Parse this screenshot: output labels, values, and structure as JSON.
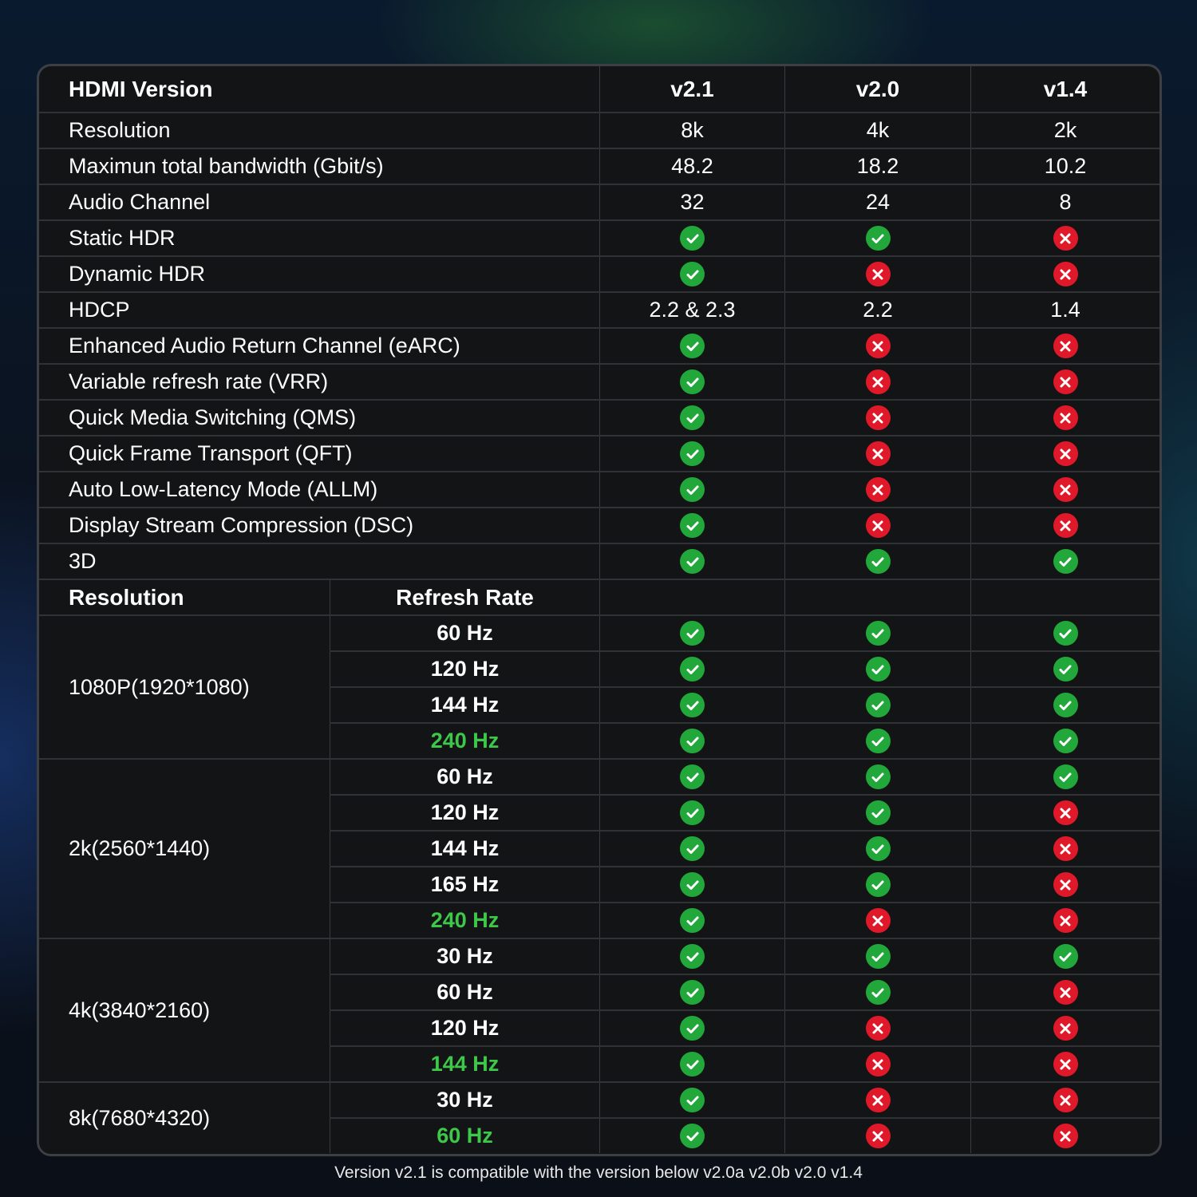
{
  "colors": {
    "check": "#22a83a",
    "cross": "#e0192a",
    "highlight": "#3ec84a",
    "background": "#131416"
  },
  "header": {
    "label": "HDMI Version",
    "versions": [
      "v2.1",
      "v2.0",
      "v1.4"
    ]
  },
  "features": [
    {
      "label": "Resolution",
      "values": [
        "8k",
        "4k",
        "2k"
      ]
    },
    {
      "label": "Maximun total bandwidth (Gbit/s)",
      "values": [
        "48.2",
        "18.2",
        "10.2"
      ]
    },
    {
      "label": "Audio Channel",
      "values": [
        "32",
        "24",
        "8"
      ]
    },
    {
      "label": "Static HDR",
      "values": [
        "check",
        "check",
        "cross"
      ]
    },
    {
      "label": "Dynamic HDR",
      "values": [
        "check",
        "cross",
        "cross"
      ]
    },
    {
      "label": "HDCP",
      "values": [
        "2.2 & 2.3",
        "2.2",
        "1.4"
      ]
    },
    {
      "label": "Enhanced Audio Return Channel (eARC)",
      "values": [
        "check",
        "cross",
        "cross"
      ]
    },
    {
      "label": "Variable refresh rate (VRR)",
      "values": [
        "check",
        "cross",
        "cross"
      ]
    },
    {
      "label": "Quick Media Switching (QMS)",
      "values": [
        "check",
        "cross",
        "cross"
      ]
    },
    {
      "label": "Quick Frame Transport (QFT)",
      "values": [
        "check",
        "cross",
        "cross"
      ]
    },
    {
      "label": "Auto Low-Latency Mode (ALLM)",
      "values": [
        "check",
        "cross",
        "cross"
      ]
    },
    {
      "label": "Display Stream Compression (DSC)",
      "values": [
        "check",
        "cross",
        "cross"
      ]
    },
    {
      "label": "3D",
      "values": [
        "check",
        "check",
        "check"
      ]
    }
  ],
  "refresh_header": {
    "resolution": "Resolution",
    "refresh_rate": "Refresh Rate"
  },
  "refresh_groups": [
    {
      "resolution": "1080P(1920*1080)",
      "rates": [
        {
          "rate": "60 Hz",
          "highlight": false,
          "values": [
            "check",
            "check",
            "check"
          ]
        },
        {
          "rate": "120 Hz",
          "highlight": false,
          "values": [
            "check",
            "check",
            "check"
          ]
        },
        {
          "rate": "144 Hz",
          "highlight": false,
          "values": [
            "check",
            "check",
            "check"
          ]
        },
        {
          "rate": "240 Hz",
          "highlight": true,
          "values": [
            "check",
            "check",
            "check"
          ]
        }
      ]
    },
    {
      "resolution": "2k(2560*1440)",
      "rates": [
        {
          "rate": "60 Hz",
          "highlight": false,
          "values": [
            "check",
            "check",
            "check"
          ]
        },
        {
          "rate": "120 Hz",
          "highlight": false,
          "values": [
            "check",
            "check",
            "cross"
          ]
        },
        {
          "rate": "144 Hz",
          "highlight": false,
          "values": [
            "check",
            "check",
            "cross"
          ]
        },
        {
          "rate": "165 Hz",
          "highlight": false,
          "values": [
            "check",
            "check",
            "cross"
          ]
        },
        {
          "rate": "240 Hz",
          "highlight": true,
          "values": [
            "check",
            "cross",
            "cross"
          ]
        }
      ]
    },
    {
      "resolution": "4k(3840*2160)",
      "rates": [
        {
          "rate": "30 Hz",
          "highlight": false,
          "values": [
            "check",
            "check",
            "check"
          ]
        },
        {
          "rate": "60 Hz",
          "highlight": false,
          "values": [
            "check",
            "check",
            "cross"
          ]
        },
        {
          "rate": "120 Hz",
          "highlight": false,
          "values": [
            "check",
            "cross",
            "cross"
          ]
        },
        {
          "rate": "144 Hz",
          "highlight": true,
          "values": [
            "check",
            "cross",
            "cross"
          ]
        }
      ]
    },
    {
      "resolution": "8k(7680*4320)",
      "rates": [
        {
          "rate": "30 Hz",
          "highlight": false,
          "values": [
            "check",
            "cross",
            "cross"
          ]
        },
        {
          "rate": "60 Hz",
          "highlight": true,
          "values": [
            "check",
            "cross",
            "cross"
          ]
        }
      ]
    }
  ],
  "footer": "Version v2.1 is compatible with the version below v2.0a v2.0b v2.0 v1.4"
}
